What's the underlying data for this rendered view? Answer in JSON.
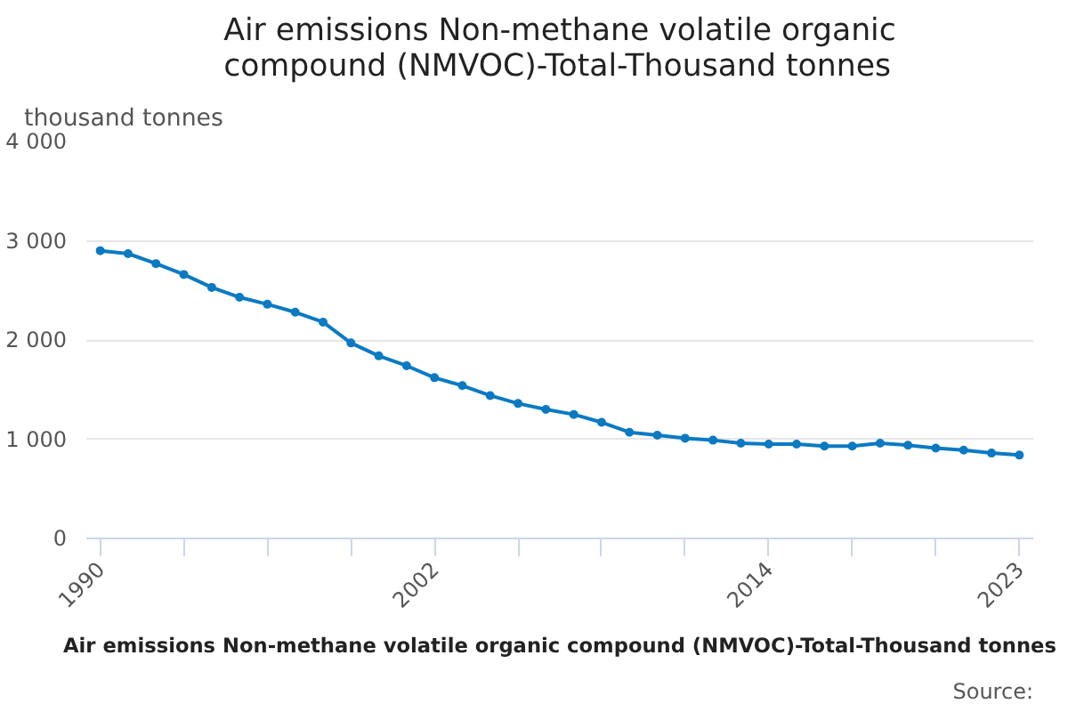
{
  "chart_data": {
    "type": "line",
    "title": "Air emissions Non-methane volatile organic compound (NMVOC)-Total-Thousand tonnes",
    "ylabel": "thousand tonnes",
    "x": [
      1990,
      1991,
      1992,
      1993,
      1994,
      1995,
      1996,
      1997,
      1998,
      1999,
      2000,
      2001,
      2002,
      2003,
      2004,
      2005,
      2006,
      2007,
      2008,
      2009,
      2010,
      2011,
      2012,
      2013,
      2014,
      2015,
      2016,
      2017,
      2018,
      2019,
      2020,
      2021,
      2022,
      2023
    ],
    "series": [
      {
        "color": "#0b7ac2",
        "values": [
          2900,
          2870,
          2770,
          2660,
          2530,
          2430,
          2360,
          2280,
          2180,
          1970,
          1840,
          1740,
          1620,
          1540,
          1440,
          1360,
          1300,
          1250,
          1170,
          1070,
          1040,
          1010,
          990,
          960,
          950,
          950,
          930,
          930,
          960,
          940,
          910,
          890,
          860,
          840
        ]
      }
    ],
    "xlim": [
      1989.5,
      2023.5
    ],
    "xticks": [
      1990,
      {
        "value": 1993,
        "label": null
      },
      {
        "value": 1996,
        "label": null
      },
      {
        "value": 1999,
        "label": null
      },
      2002,
      {
        "value": 2005,
        "label": null
      },
      {
        "value": 2008,
        "label": null
      },
      {
        "value": 2011,
        "label": null
      },
      2014,
      {
        "value": 2017,
        "label": null
      },
      {
        "value": 2020,
        "label": null
      },
      2023
    ],
    "ylim": [
      0,
      4000
    ],
    "yticks": [
      0,
      {
        "value": 1000,
        "label": "1 000"
      },
      {
        "value": 2000,
        "label": "2 000"
      },
      {
        "value": 3000,
        "label": "3 000"
      },
      {
        "value": 4000,
        "label": "4 000"
      }
    ],
    "grid": "y",
    "marker": "circle",
    "line_style": "solid",
    "annotations": [
      "Air emissions Non-methane volatile organic compound (NMVOC)-Total-Thousand tonnes",
      "Source:"
    ]
  }
}
